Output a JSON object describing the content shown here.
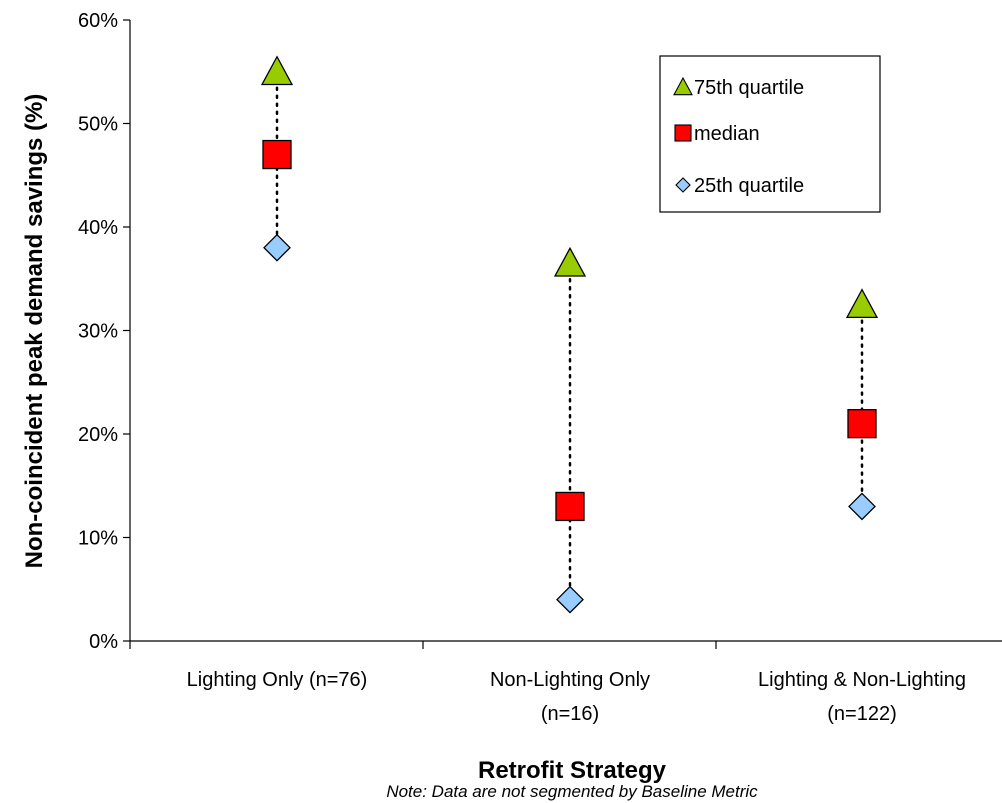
{
  "colors": {
    "q75": "#99cc00",
    "median": "#ff0000",
    "q25": "#99ccff",
    "axis": "#000000",
    "whisker": "#000000",
    "background": "#ffffff"
  },
  "chart_data": {
    "type": "scatter",
    "title": "",
    "xlabel": "Retrofit Strategy",
    "ylabel": "Non-coincident peak demand savings (%)",
    "note": "Note: Data are not segmented by Baseline Metric",
    "ylim": [
      0,
      60
    ],
    "yticks": [
      0,
      10,
      20,
      30,
      40,
      50,
      60
    ],
    "ytick_labels": [
      "0%",
      "10%",
      "20%",
      "30%",
      "40%",
      "50%",
      "60%"
    ],
    "grid": false,
    "legend_position": "top-right",
    "categories": [
      {
        "lines": [
          "Lighting Only (n=76)"
        ]
      },
      {
        "lines": [
          "Non-Lighting Only",
          "(n=16)"
        ]
      },
      {
        "lines": [
          "Lighting & Non-Lighting",
          "(n=122)"
        ]
      }
    ],
    "series": [
      {
        "name": "75th quartile",
        "marker": "triangle",
        "color": "#99cc00",
        "values": [
          55,
          36.5,
          32.5
        ]
      },
      {
        "name": "median",
        "marker": "square",
        "color": "#ff0000",
        "values": [
          47,
          13,
          21
        ]
      },
      {
        "name": "25th quartile",
        "marker": "diamond",
        "color": "#99ccff",
        "values": [
          38,
          4,
          13
        ]
      }
    ]
  }
}
